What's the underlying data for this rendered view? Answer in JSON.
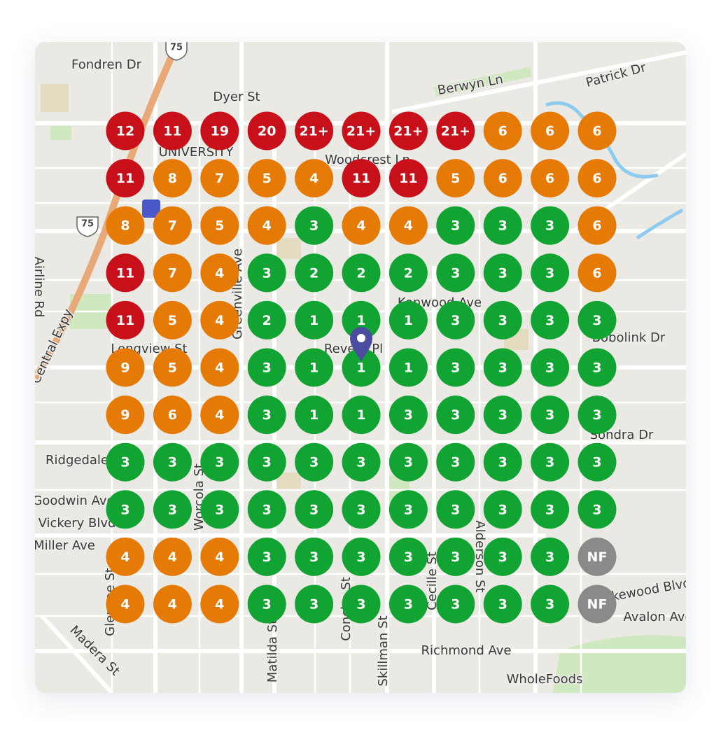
{
  "grid": {
    "rows": [
      [
        "12",
        "11",
        "19",
        "20",
        "21+",
        "21+",
        "21+",
        "21+",
        "6",
        "6",
        "6"
      ],
      [
        "11",
        "8",
        "7",
        "5",
        "4",
        "11",
        "11",
        "5",
        "6",
        "6",
        "6"
      ],
      [
        "8",
        "7",
        "5",
        "4",
        "3",
        "4",
        "4",
        "3",
        "3",
        "3",
        "6"
      ],
      [
        "11",
        "7",
        "4",
        "3",
        "2",
        "2",
        "2",
        "3",
        "3",
        "3",
        "6"
      ],
      [
        "11",
        "5",
        "4",
        "2",
        "1",
        "1",
        "1",
        "3",
        "3",
        "3",
        "3"
      ],
      [
        "9",
        "5",
        "4",
        "3",
        "1",
        "1",
        "1",
        "3",
        "3",
        "3",
        "3"
      ],
      [
        "9",
        "6",
        "4",
        "3",
        "1",
        "1",
        "3",
        "3",
        "3",
        "3",
        "3"
      ],
      [
        "3",
        "3",
        "3",
        "3",
        "3",
        "3",
        "3",
        "3",
        "3",
        "3",
        "3"
      ],
      [
        "3",
        "3",
        "3",
        "3",
        "3",
        "3",
        "3",
        "3",
        "3",
        "3",
        "3"
      ],
      [
        "4",
        "4",
        "4",
        "3",
        "3",
        "3",
        "3",
        "3",
        "3",
        "3",
        "NF"
      ],
      [
        "4",
        "4",
        "4",
        "3",
        "3",
        "3",
        "3",
        "3",
        "3",
        "3",
        "NF"
      ]
    ]
  },
  "map": {
    "labels": [
      "Fondren Dr",
      "Dyer St",
      "Berwyn Ln",
      "Patrick Dr",
      "UNIVERSITY",
      "Woodcrest Ln",
      "Airline Rd",
      "Greenville Ave",
      "Longview St",
      "Revere Pl",
      "Kenwood Ave",
      "Bobolink Dr",
      "Central Expy",
      "Sondra Dr",
      "Ridgedale",
      "Worcola St",
      "Goodwin Ave",
      "Vickery Blvd",
      "Miller Ave",
      "Alderson St",
      "Cecille St",
      "Matilda St",
      "Concho St",
      "Skillman St",
      "Richmond Ave",
      "WholeFoods",
      "Madera St",
      "Glencoe St",
      "Avalon Ave",
      "Lakewood Blvd"
    ],
    "shields": [
      "75",
      "75"
    ]
  }
}
